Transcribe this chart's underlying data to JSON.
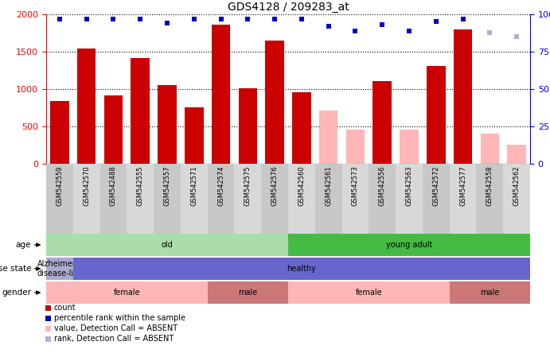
{
  "title": "GDS4128 / 209283_at",
  "samples": [
    "GSM542559",
    "GSM542570",
    "GSM542488",
    "GSM542555",
    "GSM542557",
    "GSM542571",
    "GSM542574",
    "GSM542575",
    "GSM542576",
    "GSM542560",
    "GSM542561",
    "GSM542573",
    "GSM542556",
    "GSM542563",
    "GSM542572",
    "GSM542577",
    "GSM542558",
    "GSM542562"
  ],
  "count_values": [
    840,
    1540,
    920,
    1410,
    1050,
    760,
    1860,
    1010,
    1650,
    960,
    null,
    null,
    1110,
    null,
    1310,
    1800,
    null,
    null
  ],
  "absent_values": [
    null,
    null,
    null,
    null,
    null,
    null,
    null,
    null,
    null,
    null,
    710,
    460,
    null,
    460,
    null,
    null,
    400,
    250
  ],
  "percentile_values": [
    97,
    97,
    97,
    97,
    94,
    97,
    97,
    97,
    97,
    97,
    92,
    89,
    93,
    89,
    95,
    97,
    88,
    85
  ],
  "absent_percentile": [
    null,
    null,
    null,
    null,
    null,
    null,
    null,
    null,
    null,
    null,
    null,
    null,
    null,
    null,
    null,
    null,
    88,
    85
  ],
  "ylim_left": [
    0,
    2000
  ],
  "ylim_right": [
    0,
    100
  ],
  "yticks_left": [
    0,
    500,
    1000,
    1500,
    2000
  ],
  "yticks_right": [
    0,
    25,
    50,
    75,
    100
  ],
  "bar_color_present": "#cc0000",
  "bar_color_absent": "#ffb6b6",
  "dot_color_present": "#0000cc",
  "dot_color_absent": "#b0b0d8",
  "age_groups": [
    {
      "label": "old",
      "start": 0,
      "end": 9,
      "color": "#aaddaa"
    },
    {
      "label": "young adult",
      "start": 9,
      "end": 18,
      "color": "#44bb44"
    }
  ],
  "disease_groups": [
    {
      "label": "Alzheimer's\ndisease-like",
      "start": 0,
      "end": 1,
      "color": "#aaaacc"
    },
    {
      "label": "healthy",
      "start": 1,
      "end": 18,
      "color": "#6666cc"
    }
  ],
  "gender_groups": [
    {
      "label": "female",
      "start": 0,
      "end": 6,
      "color": "#ffb6b6"
    },
    {
      "label": "male",
      "start": 6,
      "end": 9,
      "color": "#cc7777"
    },
    {
      "label": "female",
      "start": 9,
      "end": 15,
      "color": "#ffb6b6"
    },
    {
      "label": "male",
      "start": 15,
      "end": 18,
      "color": "#cc7777"
    }
  ],
  "legend_items": [
    {
      "label": "count",
      "color": "#cc0000"
    },
    {
      "label": "percentile rank within the sample",
      "color": "#0000cc"
    },
    {
      "label": "value, Detection Call = ABSENT",
      "color": "#ffb6b6"
    },
    {
      "label": "rank, Detection Call = ABSENT",
      "color": "#b0b0d8"
    }
  ]
}
